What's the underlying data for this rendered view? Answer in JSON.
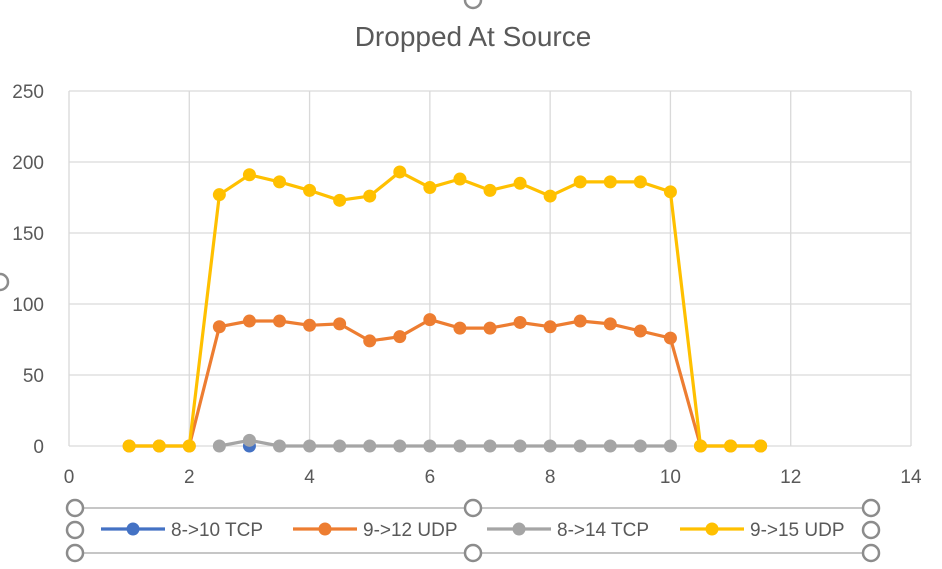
{
  "chart_data": {
    "type": "scatter",
    "title": "Dropped At Source",
    "xlabel": "",
    "ylabel": "",
    "xlim": [
      0,
      14
    ],
    "ylim": [
      0,
      250
    ],
    "xticks": [
      "0",
      "2",
      "4",
      "6",
      "8",
      "10",
      "12",
      "14"
    ],
    "yticks": [
      "0",
      "50",
      "100",
      "150",
      "200",
      "250"
    ],
    "grid": true,
    "legend_position": "bottom",
    "series": [
      {
        "name": "8->10 TCP",
        "color": "#4472C4",
        "points": [
          [
            3,
            0
          ]
        ]
      },
      {
        "name": "9->12 UDP",
        "color": "#ED7D31",
        "points": [
          [
            1,
            0
          ],
          [
            1.5,
            0
          ],
          [
            2,
            0
          ],
          [
            2.5,
            84
          ],
          [
            3,
            88
          ],
          [
            3.5,
            88
          ],
          [
            4,
            85
          ],
          [
            4.5,
            86
          ],
          [
            5,
            74
          ],
          [
            5.5,
            77
          ],
          [
            6,
            89
          ],
          [
            6.5,
            83
          ],
          [
            7,
            83
          ],
          [
            7.5,
            87
          ],
          [
            8,
            84
          ],
          [
            8.5,
            88
          ],
          [
            9,
            86
          ],
          [
            9.5,
            81
          ],
          [
            10,
            76
          ],
          [
            10.5,
            0
          ],
          [
            11,
            0
          ],
          [
            11.5,
            0
          ]
        ]
      },
      {
        "name": "8->14 TCP",
        "color": "#A5A5A5",
        "points": [
          [
            2.5,
            0
          ],
          [
            3,
            4
          ],
          [
            3.5,
            0
          ],
          [
            4,
            0
          ],
          [
            4.5,
            0
          ],
          [
            5,
            0
          ],
          [
            5.5,
            0
          ],
          [
            6,
            0
          ],
          [
            6.5,
            0
          ],
          [
            7,
            0
          ],
          [
            7.5,
            0
          ],
          [
            8,
            0
          ],
          [
            8.5,
            0
          ],
          [
            9,
            0
          ],
          [
            9.5,
            0
          ],
          [
            10,
            0
          ]
        ]
      },
      {
        "name": "9->15 UDP",
        "color": "#FFC000",
        "points": [
          [
            1,
            0
          ],
          [
            1.5,
            0
          ],
          [
            2,
            0
          ],
          [
            2.5,
            177
          ],
          [
            3,
            191
          ],
          [
            3.5,
            186
          ],
          [
            4,
            180
          ],
          [
            4.5,
            173
          ],
          [
            5,
            176
          ],
          [
            5.5,
            193
          ],
          [
            6,
            182
          ],
          [
            6.5,
            188
          ],
          [
            7,
            180
          ],
          [
            7.5,
            185
          ],
          [
            8,
            176
          ],
          [
            8.5,
            186
          ],
          [
            9,
            186
          ],
          [
            9.5,
            186
          ],
          [
            10,
            179
          ],
          [
            10.5,
            0
          ],
          [
            11,
            0
          ],
          [
            11.5,
            0
          ]
        ]
      }
    ]
  }
}
